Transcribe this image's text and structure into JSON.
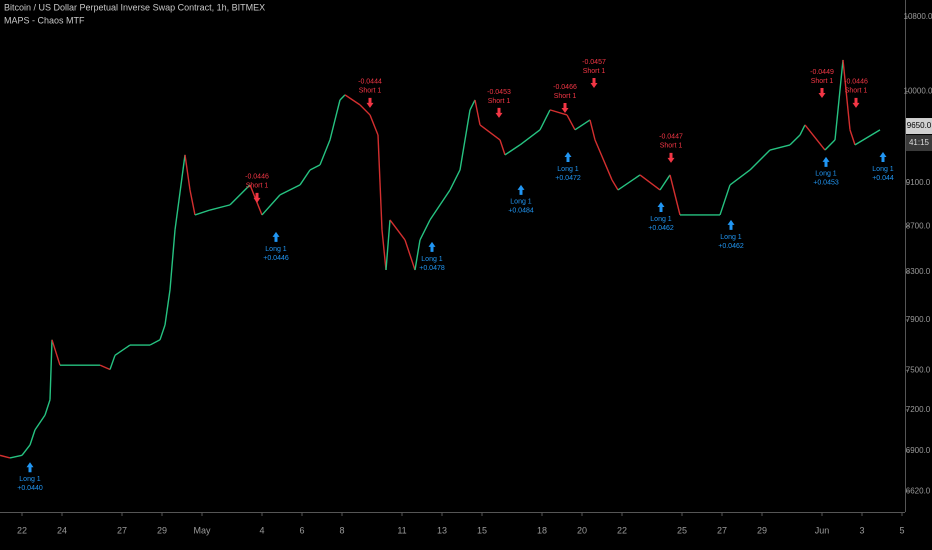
{
  "chart_data": {
    "type": "line",
    "title": "Bitcoin / US Dollar Perpetual Inverse Swap Contract, 1h, BITMEX",
    "indicator": "MAPS - Chaos MTF",
    "log_scale": true,
    "up_color": "#26c281",
    "down_color": "#d32f2f",
    "long_color": "#2196f3",
    "short_color": "#f23645",
    "x": [
      20.9,
      21.4,
      22,
      22.4,
      22.65,
      23.15,
      23.4,
      23.5,
      23.9,
      24.9,
      25.9,
      26.4,
      26.65,
      27.4,
      28.4,
      28.9,
      29.15,
      29.4,
      29.65,
      30.15,
      30.4,
      30.65,
      31.4,
      32.4,
      33.4,
      34.0,
      34.9,
      35.9,
      36.4,
      36.9,
      37.4,
      37.9,
      38.15,
      38.9,
      39.4,
      39.8,
      40.0,
      40.2,
      40.4,
      41.15,
      41.65,
      41.9,
      42.4,
      43.4,
      43.9,
      44.4,
      44.65,
      44.9,
      45.9,
      46.15,
      46.9,
      47.9,
      48.4,
      49.25,
      49.65,
      50.4,
      50.65,
      51.5,
      51.8,
      52.9,
      53.9,
      54.4,
      54.9,
      55.9,
      56.9,
      57.4,
      58.4,
      59.4,
      60.4,
      60.9,
      61.15,
      62.15,
      62.65,
      63.05,
      63.4,
      63.65,
      64.9
    ],
    "values": [
      6870,
      6852,
      6870,
      6944,
      7053,
      7161,
      7275,
      7740,
      7540,
      7540,
      7540,
      7506,
      7617,
      7698,
      7698,
      7740,
      7859,
      8149,
      8669,
      9367,
      9034,
      8804,
      8849,
      8896,
      9081,
      8804,
      8988,
      9081,
      9222,
      9271,
      9513,
      9913,
      9965,
      9863,
      9761,
      9561,
      8669,
      8318,
      8759,
      8580,
      8318,
      8580,
      8759,
      9034,
      9222,
      9812,
      9913,
      9661,
      9513,
      9367,
      9464,
      9612,
      9812,
      9761,
      9612,
      9711,
      9513,
      9128,
      9034,
      9175,
      9034,
      9175,
      8804,
      8804,
      8804,
      9081,
      9222,
      9414,
      9464,
      9561,
      9661,
      9414,
      9513,
      10331,
      9612,
      9464,
      9612
    ],
    "xlim": [
      20.9,
      66.15
    ],
    "ylim": [
      6480,
      10990
    ],
    "xticks": [
      22,
      24,
      27,
      29,
      {
        "value": 31,
        "label": "May"
      },
      {
        "value": 34,
        "label": "4"
      },
      {
        "value": 36,
        "label": "6"
      },
      {
        "value": 38,
        "label": "8"
      },
      {
        "value": 41,
        "label": "11"
      },
      {
        "value": 43,
        "label": "13"
      },
      {
        "value": 45,
        "label": "15"
      },
      {
        "value": 48,
        "label": "18"
      },
      {
        "value": 50,
        "label": "20"
      },
      {
        "value": 52,
        "label": "22"
      },
      {
        "value": 55,
        "label": "25"
      },
      {
        "value": 57,
        "label": "27"
      },
      {
        "value": 59,
        "label": "29"
      },
      {
        "value": 62,
        "label": "Jun"
      },
      {
        "value": 64,
        "label": "3"
      },
      {
        "value": 66,
        "label": "5"
      }
    ],
    "yticks": [
      {
        "value": 10800,
        "label": "10800.0"
      },
      {
        "value": 10000,
        "label": "10000.0"
      },
      {
        "value": 9100,
        "label": "9100.0"
      },
      {
        "value": 8700,
        "label": "8700.0"
      },
      {
        "value": 8300,
        "label": "8300.0"
      },
      {
        "value": 7900,
        "label": "7900.0"
      },
      {
        "value": 7500,
        "label": "7500.0"
      },
      {
        "value": 7200,
        "label": "7200.0"
      },
      {
        "value": 6900,
        "label": "6900.0"
      },
      {
        "value": 6620,
        "label": "6620.0"
      }
    ],
    "price_tag": {
      "value": 9650,
      "label": "9650.0"
    },
    "countdown": "41:15",
    "signals": [
      {
        "side": "long",
        "label": "Long 1",
        "pnl": "+0.0440",
        "x": 22.4,
        "y": 6835
      },
      {
        "side": "short",
        "label": "Short 1",
        "pnl": "-0.0446",
        "x": 33.75,
        "y": 8896
      },
      {
        "side": "long",
        "label": "Long 1",
        "pnl": "+0.0446",
        "x": 34.7,
        "y": 8669
      },
      {
        "side": "short",
        "label": "Short 1",
        "pnl": "-0.0444",
        "x": 39.4,
        "y": 9812
      },
      {
        "side": "long",
        "label": "Long 1",
        "pnl": "+0.0478",
        "x": 42.5,
        "y": 8580
      },
      {
        "side": "short",
        "label": "Short 1",
        "pnl": "-0.0453",
        "x": 45.85,
        "y": 9711
      },
      {
        "side": "long",
        "label": "Long 1",
        "pnl": "+0.0484",
        "x": 46.95,
        "y": 9100
      },
      {
        "side": "short",
        "label": "Short 1",
        "pnl": "-0.0466",
        "x": 49.15,
        "y": 9761
      },
      {
        "side": "long",
        "label": "Long 1",
        "pnl": "+0.0472",
        "x": 49.3,
        "y": 9414
      },
      {
        "side": "short",
        "label": "Short 1",
        "pnl": "-0.0457",
        "x": 50.6,
        "y": 10016
      },
      {
        "side": "long",
        "label": "Long 1",
        "pnl": "+0.0462",
        "x": 53.95,
        "y": 8941
      },
      {
        "side": "short",
        "label": "Short 1",
        "pnl": "-0.0447",
        "x": 54.45,
        "y": 9271
      },
      {
        "side": "long",
        "label": "Long 1",
        "pnl": "+0.0462",
        "x": 57.45,
        "y": 8777
      },
      {
        "side": "short",
        "label": "Short 1",
        "pnl": "-0.0449",
        "x": 62.0,
        "y": 9913
      },
      {
        "side": "long",
        "label": "Long 1",
        "pnl": "+0.0453",
        "x": 62.2,
        "y": 9367
      },
      {
        "side": "short",
        "label": "Short 1",
        "pnl": "-0.0446",
        "x": 63.7,
        "y": 9812
      },
      {
        "side": "long",
        "label": "Long 1",
        "pnl": "+0.044",
        "x": 65.05,
        "y": 9414
      }
    ]
  }
}
